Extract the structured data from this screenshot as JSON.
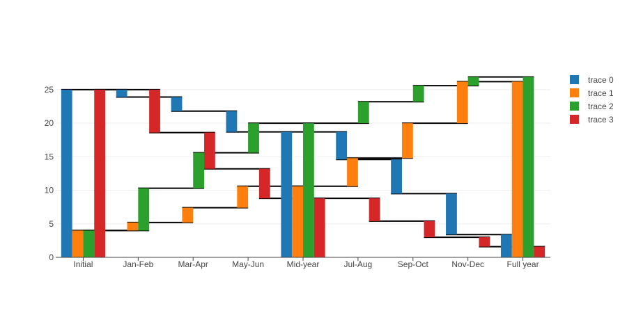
{
  "chart_data": {
    "type": "bar",
    "subtype": "waterfall",
    "categories": [
      "Initial",
      "Jan-Feb",
      "Mar-Apr",
      "May-Jun",
      "Mid-year",
      "Jul-Aug",
      "Sep-Oct",
      "Nov-Dec",
      "Full year"
    ],
    "ylim": [
      0,
      28
    ],
    "yticks": [
      "0",
      "5",
      "10",
      "15",
      "20",
      "25"
    ],
    "grid": true,
    "legend": "right",
    "series": [
      {
        "name": "trace 0",
        "color": "#1f77b4",
        "bars": [
          [
            0,
            25
          ],
          [
            25,
            23.9
          ],
          [
            23.9,
            21.8
          ],
          [
            21.8,
            18.7
          ],
          [
            0,
            18.7
          ],
          [
            18.7,
            14.6
          ],
          [
            14.6,
            9.5
          ],
          [
            9.5,
            3.4
          ],
          [
            0,
            3.4
          ]
        ]
      },
      {
        "name": "trace 1",
        "color": "#ff7f0e",
        "bars": [
          [
            0,
            4
          ],
          [
            4,
            5.2
          ],
          [
            5.2,
            7.4
          ],
          [
            7.4,
            10.6
          ],
          [
            0,
            10.6
          ],
          [
            10.6,
            14.8
          ],
          [
            14.8,
            20
          ],
          [
            20,
            26.2
          ],
          [
            0,
            26.2
          ]
        ]
      },
      {
        "name": "trace 2",
        "color": "#2ca02c",
        "bars": [
          [
            0,
            4
          ],
          [
            4,
            10.3
          ],
          [
            10.3,
            15.6
          ],
          [
            15.6,
            20
          ],
          [
            0,
            20
          ],
          [
            20,
            23.2
          ],
          [
            23.2,
            25.6
          ],
          [
            25.6,
            26.9
          ],
          [
            0,
            26.9
          ]
        ]
      },
      {
        "name": "trace 3",
        "color": "#d62728",
        "bars": [
          [
            0,
            25
          ],
          [
            25,
            18.6
          ],
          [
            18.6,
            13.2
          ],
          [
            13.2,
            8.8
          ],
          [
            0,
            8.8
          ],
          [
            8.8,
            5.4
          ],
          [
            5.4,
            3
          ],
          [
            3,
            1.6
          ],
          [
            0,
            1.6
          ]
        ]
      }
    ]
  }
}
